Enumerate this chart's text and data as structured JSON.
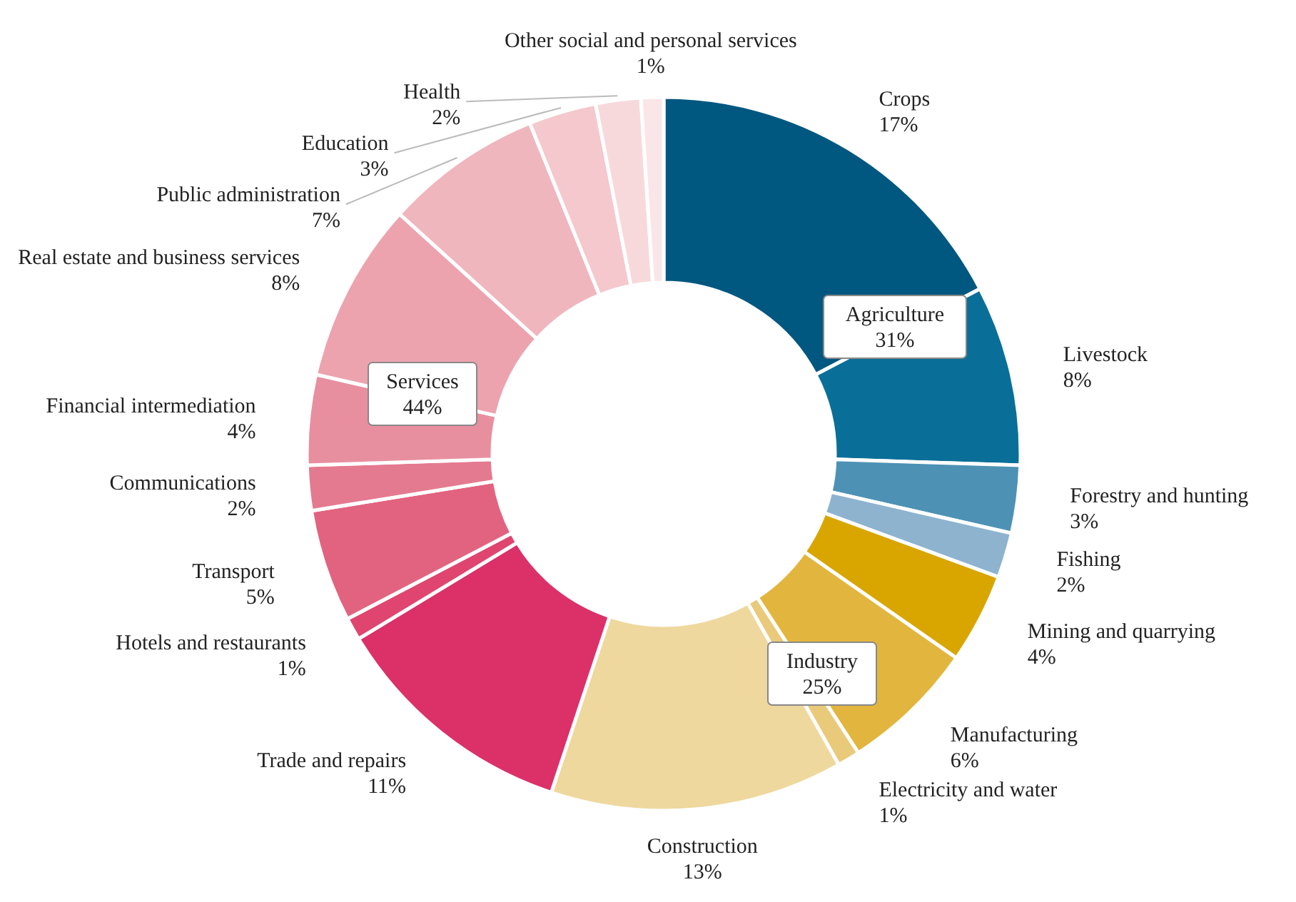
{
  "chart_data": {
    "type": "donut",
    "categories": [
      "Crops",
      "Livestock",
      "Forestry and hunting",
      "Fishing",
      "Mining and quarrying",
      "Manufacturing",
      "Electricity and water",
      "Construction",
      "Trade and repairs",
      "Hotels and restaurants",
      "Transport",
      "Communications",
      "Financial intermediation",
      "Real estate and business services",
      "Public administration",
      "Education",
      "Health",
      "Other social and personal services"
    ],
    "values": [
      17,
      8,
      3,
      2,
      4,
      6,
      1,
      13,
      11,
      1,
      5,
      2,
      4,
      8,
      7,
      3,
      2,
      1
    ],
    "colors": [
      "#00577f",
      "#0a6f98",
      "#4d92b5",
      "#8db3cf",
      "#d9a600",
      "#e2b63e",
      "#e9c97a",
      "#efd89e",
      "#dc3069",
      "#e0456f",
      "#e2637f",
      "#e47a8f",
      "#e88f9f",
      "#eca3ae",
      "#f0b6bd",
      "#f4c8cd",
      "#f7d9dc",
      "#fae6e8"
    ],
    "value_labels": [
      "17%",
      "8%",
      "3%",
      "2%",
      "4%",
      "6%",
      "1%",
      "13%",
      "11%",
      "1%",
      "5%",
      "2%",
      "4%",
      "8%",
      "7%",
      "3%",
      "2%",
      "1%"
    ],
    "annotations": [
      "Agriculture 31%",
      "Industry 25%",
      "Services 44%"
    ]
  }
}
